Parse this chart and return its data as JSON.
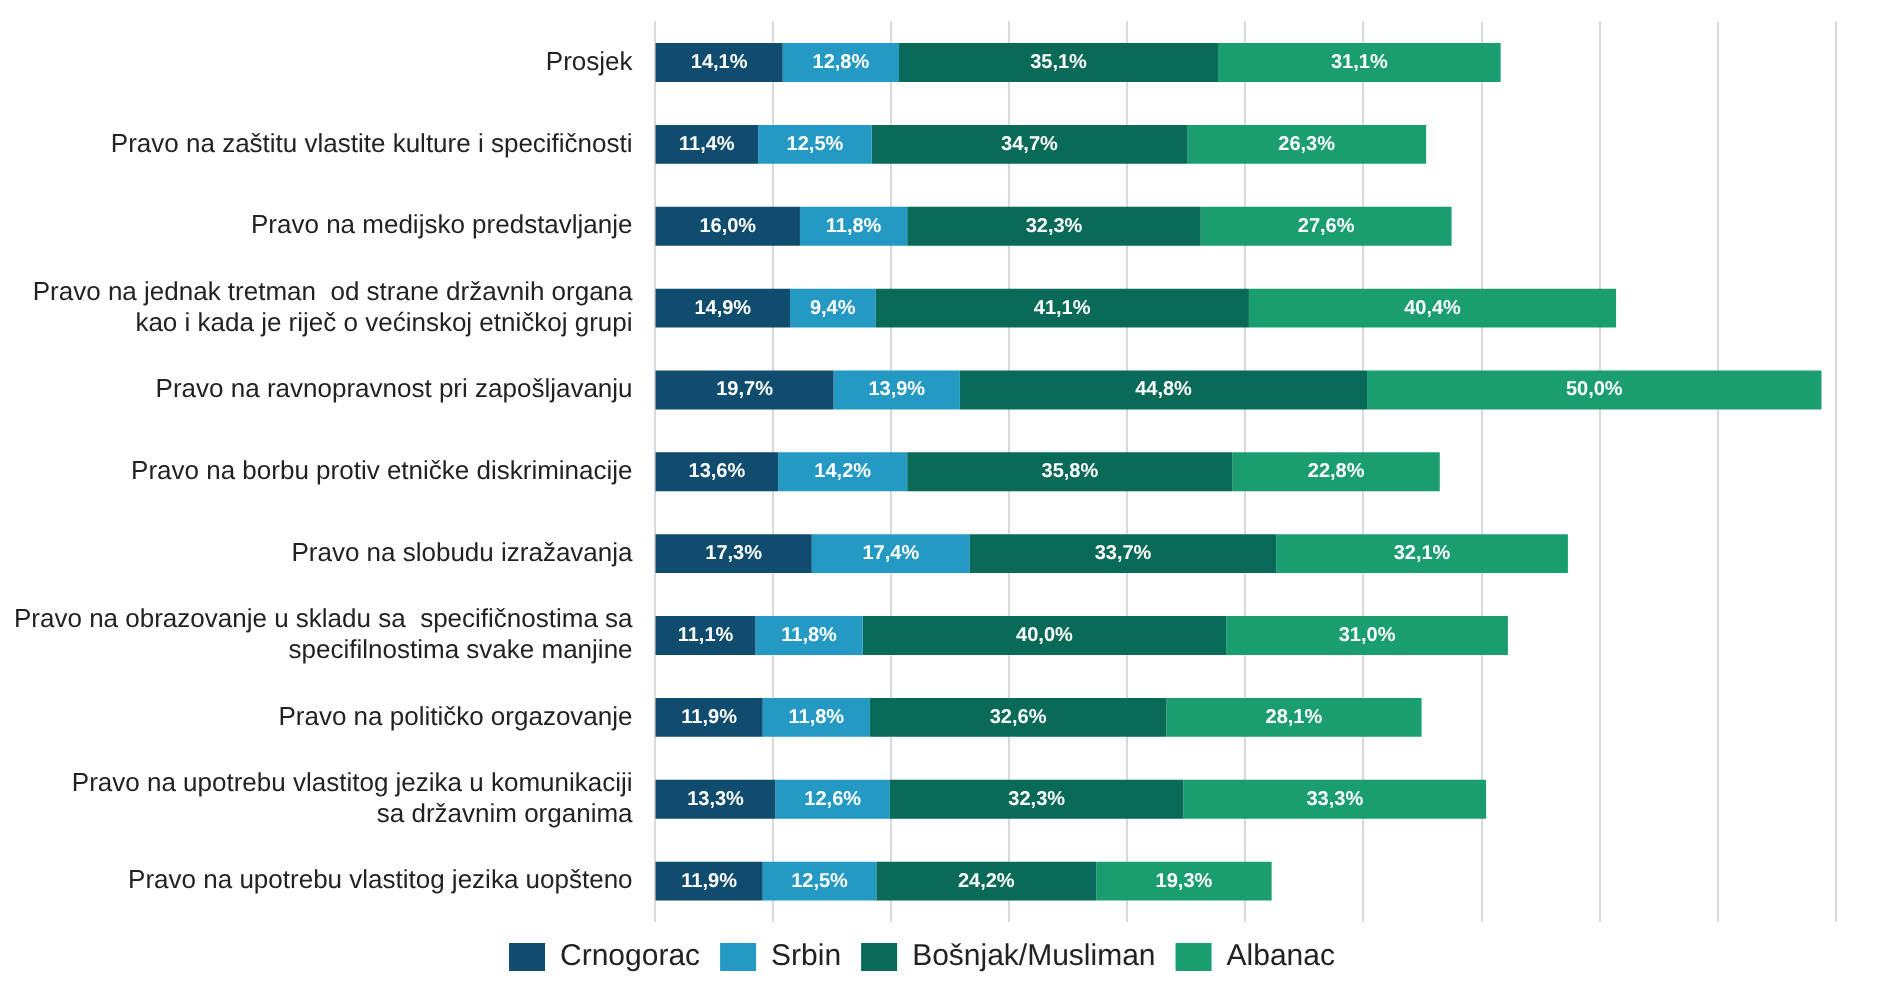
{
  "chart_data": {
    "type": "bar",
    "orientation": "horizontal",
    "stacked": true,
    "categories": [
      "Prosjek",
      "Pravo na zaštitu vlastite kulture i specifičnosti",
      "Pravo na medijsko predstavljanje",
      "Pravo na jednak tretman  od strane državnih organa\nkao i kada je riječ o većinskoj etničkoj grupi",
      "Pravo na ravnopravnost pri zapošljavanju",
      "Pravo na borbu protiv etničke diskriminacije",
      "Pravo na slobudu izražavanja",
      "Pravo na obrazovanje u skladu sa  specifičnostima sa\nspecifilnostima svake manjine",
      "Pravo na političko orgazovanje",
      "Pravo na upotrebu vlastitog jezika u komunikaciji\nsa državnim organima",
      "Pravo na upotrebu vlastitog jezika uopšteno"
    ],
    "series": [
      {
        "name": "Crnogorac",
        "color": "#0f4c6e",
        "values": [
          14.1,
          11.4,
          16.0,
          14.9,
          19.7,
          13.6,
          17.3,
          11.1,
          11.9,
          13.3,
          11.9
        ],
        "value_labels": [
          "14,1%",
          "11,4%",
          "16,0%",
          "14,9%",
          "19,7%",
          "13,6%",
          "17,3%",
          "11,1%",
          "11,9%",
          "13,3%",
          "11,9%"
        ]
      },
      {
        "name": "Srbin",
        "color": "#2399c3",
        "values": [
          12.8,
          12.5,
          11.8,
          9.4,
          13.9,
          14.2,
          17.4,
          11.8,
          11.8,
          12.6,
          12.5
        ],
        "value_labels": [
          "12,8%",
          "12,5%",
          "11,8%",
          "9,4%",
          "13,9%",
          "14,2%",
          "17,4%",
          "11,8%",
          "11,8%",
          "12,6%",
          "12,5%"
        ]
      },
      {
        "name": "Bošnjak/Musliman",
        "color": "#0a6a58",
        "values": [
          35.1,
          34.7,
          32.3,
          41.1,
          44.8,
          35.8,
          33.7,
          40.0,
          32.6,
          32.3,
          24.2
        ],
        "value_labels": [
          "35,1%",
          "34,7%",
          "32,3%",
          "41,1%",
          "44,8%",
          "35,8%",
          "33,7%",
          "40,0%",
          "32,6%",
          "32,3%",
          "24,2%"
        ]
      },
      {
        "name": "Albanac",
        "color": "#1a9e70",
        "values": [
          31.1,
          26.3,
          27.6,
          40.4,
          50.0,
          22.8,
          32.1,
          31.0,
          28.1,
          33.3,
          19.3
        ],
        "value_labels": [
          "31,1%",
          "26,3%",
          "27,6%",
          "40,4%",
          "50,0%",
          "22,8%",
          "32,1%",
          "31,0%",
          "28,1%",
          "33,3%",
          "19,3%"
        ]
      }
    ],
    "xlim": [
      0,
      130
    ],
    "xticks": [
      {
        "value": 0,
        "label": null
      },
      {
        "value": 13,
        "label": null
      },
      {
        "value": 26,
        "label": null
      },
      {
        "value": 39,
        "label": null
      },
      {
        "value": 52,
        "label": null
      },
      {
        "value": 65,
        "label": null
      },
      {
        "value": 78,
        "label": null
      },
      {
        "value": 91,
        "label": null
      },
      {
        "value": 104,
        "label": null
      },
      {
        "value": 117,
        "label": null
      },
      {
        "value": 130,
        "label": null
      }
    ],
    "grid": "x",
    "legend": "bottom",
    "tick_labels": "y"
  }
}
